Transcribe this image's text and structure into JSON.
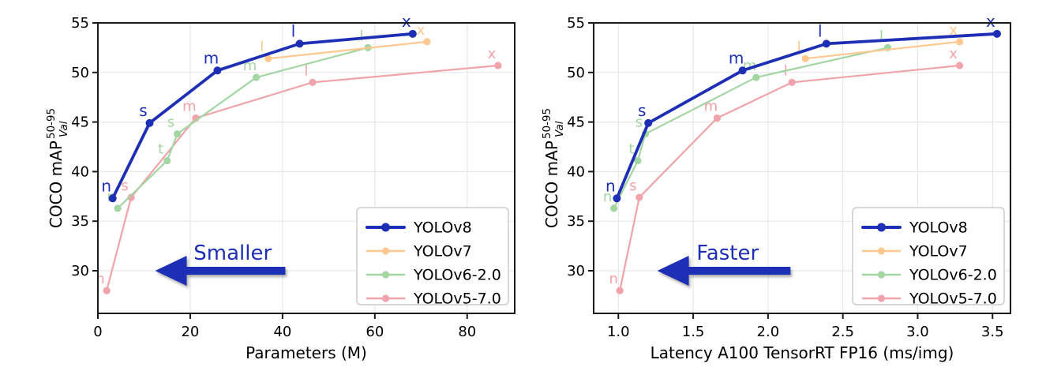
{
  "figure": {
    "background": "#ffffff",
    "accent_blue": "#1d2fb5",
    "frame_color": "#1a1a1a",
    "grid_color": "#e7e7e7"
  },
  "chart_data": [
    {
      "type": "line",
      "id": "params",
      "xlabel": "Parameters (M)",
      "ylabel": {
        "text": "COCO mAP",
        "sup": "50-95",
        "sub": "Val"
      },
      "xlim": [
        0,
        90.3
      ],
      "ylim": [
        25.7,
        55
      ],
      "grid": true,
      "xticks": {
        "values": [
          0,
          20,
          40,
          60,
          80
        ],
        "labels": [
          "0",
          "20",
          "40",
          "60",
          "80"
        ]
      },
      "yticks": {
        "values": [
          30,
          35,
          40,
          45,
          50,
          55
        ],
        "labels": [
          "30",
          "35",
          "40",
          "45",
          "50",
          "55"
        ]
      },
      "legend": {
        "position": "lower-right"
      },
      "annotation": {
        "label": "Smaller",
        "color": "#1d2fb5",
        "label_x": 29.2,
        "arrow": {
          "tip_x": 12.4,
          "tail_x": 40.6,
          "y": 30.0
        }
      },
      "series": [
        {
          "name": "YOLOv8",
          "color": "#1d2fb5",
          "emphasis": true,
          "point_labels": [
            "n",
            "s",
            "m",
            "l",
            "x"
          ],
          "x": [
            3.2,
            11.2,
            25.9,
            43.7,
            68.2
          ],
          "y": [
            37.3,
            44.9,
            50.2,
            52.9,
            53.9
          ]
        },
        {
          "name": "YOLOv7",
          "color": "#ffc890",
          "emphasis": false,
          "point_labels": [
            "l",
            "x"
          ],
          "x": [
            36.9,
            71.3
          ],
          "y": [
            51.4,
            53.1
          ]
        },
        {
          "name": "YOLOv6-2.0",
          "color": "#a3d6a3",
          "emphasis": false,
          "point_labels": [
            "n",
            "t",
            "s",
            "m",
            "l"
          ],
          "x": [
            4.3,
            15.0,
            17.2,
            34.3,
            58.5
          ],
          "y": [
            36.3,
            41.1,
            43.8,
            49.5,
            52.5
          ]
        },
        {
          "name": "YOLOv5-7.0",
          "color": "#f0a3aa",
          "emphasis": false,
          "point_labels": [
            "n",
            "s",
            "m",
            "l",
            "x"
          ],
          "x": [
            1.9,
            7.2,
            21.2,
            46.5,
            86.7
          ],
          "y": [
            28.0,
            37.4,
            45.4,
            49.0,
            50.7
          ]
        }
      ]
    },
    {
      "type": "line",
      "id": "latency",
      "xlabel": "Latency A100 TensorRT FP16 (ms/img)",
      "ylabel": {
        "text": "COCO mAP",
        "sup": "50-95",
        "sub": "Val"
      },
      "xlim": [
        0.835,
        3.62
      ],
      "ylim": [
        25.7,
        55
      ],
      "grid": true,
      "xticks": {
        "values": [
          1.0,
          1.5,
          2.0,
          2.5,
          3.0,
          3.5
        ],
        "labels": [
          "1.0",
          "1.5",
          "2.0",
          "2.5",
          "3.0",
          "3.5"
        ]
      },
      "yticks": {
        "values": [
          30,
          35,
          40,
          45,
          50,
          55
        ],
        "labels": [
          "30",
          "35",
          "40",
          "45",
          "50",
          "55"
        ]
      },
      "legend": {
        "position": "lower-right"
      },
      "annotation": {
        "label": "Faster",
        "color": "#1d2fb5",
        "label_x": 1.73,
        "arrow": {
          "tip_x": 1.26,
          "tail_x": 2.15,
          "y": 30.0
        }
      },
      "series": [
        {
          "name": "YOLOv8",
          "color": "#1d2fb5",
          "emphasis": true,
          "point_labels": [
            "n",
            "s",
            "m",
            "l",
            "x"
          ],
          "x": [
            0.99,
            1.2,
            1.83,
            2.39,
            3.53
          ],
          "y": [
            37.3,
            44.9,
            50.2,
            52.9,
            53.9
          ]
        },
        {
          "name": "YOLOv7",
          "color": "#ffc890",
          "emphasis": false,
          "point_labels": [
            "l",
            "x"
          ],
          "x": [
            2.25,
            3.28
          ],
          "y": [
            51.4,
            53.1
          ]
        },
        {
          "name": "YOLOv6-2.0",
          "color": "#a3d6a3",
          "emphasis": false,
          "point_labels": [
            "n",
            "t",
            "s",
            "m",
            "l"
          ],
          "x": [
            0.97,
            1.13,
            1.18,
            1.92,
            2.8
          ],
          "y": [
            36.3,
            41.1,
            43.8,
            49.5,
            52.5
          ]
        },
        {
          "name": "YOLOv5-7.0",
          "color": "#f0a3aa",
          "emphasis": false,
          "point_labels": [
            "n",
            "s",
            "m",
            "l",
            "x"
          ],
          "x": [
            1.01,
            1.14,
            1.66,
            2.16,
            3.28
          ],
          "y": [
            28.0,
            37.4,
            45.4,
            49.0,
            50.7
          ]
        }
      ]
    }
  ]
}
